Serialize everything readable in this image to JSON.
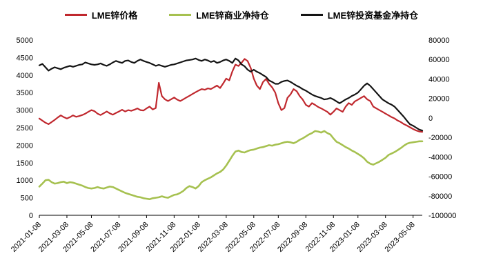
{
  "chart_data": {
    "type": "line",
    "title": "",
    "legend_position": "top",
    "grid": false,
    "x_tick_labels": [
      "2021-01-08",
      "2021-03-08",
      "2021-05-08",
      "2021-07-08",
      "2021-09-08",
      "2021-11-08",
      "2022-01-08",
      "2022-03-08",
      "2022-05-08",
      "2022-07-08",
      "2022-09-08",
      "2022-11-08",
      "2023-01-08",
      "2023-03-08",
      "2023-05-08"
    ],
    "x_tick_indices": [
      0,
      9,
      17,
      26,
      35,
      44,
      52,
      61,
      70,
      78,
      87,
      96,
      104,
      113,
      122
    ],
    "n_points": 126,
    "left_axis": {
      "min": 0,
      "max": 5000,
      "step": 500
    },
    "right_axis": {
      "min": -100000,
      "max": 80000,
      "step": 20000
    },
    "series": [
      {
        "name": "LME锌价格",
        "axis": "left",
        "color": "#c0282e",
        "values": [
          2760,
          2700,
          2640,
          2600,
          2660,
          2720,
          2790,
          2850,
          2800,
          2760,
          2800,
          2850,
          2810,
          2830,
          2860,
          2900,
          2950,
          3000,
          2970,
          2900,
          2860,
          2910,
          2960,
          2910,
          2870,
          2920,
          2960,
          3010,
          2960,
          3000,
          2980,
          3010,
          3050,
          3000,
          2990,
          3050,
          3100,
          3020,
          3060,
          3780,
          3400,
          3310,
          3260,
          3310,
          3360,
          3300,
          3260,
          3310,
          3360,
          3410,
          3460,
          3510,
          3560,
          3600,
          3580,
          3620,
          3600,
          3650,
          3700,
          3630,
          3760,
          3900,
          3850,
          4100,
          4300,
          4260,
          4350,
          4460,
          4400,
          4200,
          3900,
          3700,
          3600,
          3800,
          3890,
          3750,
          3650,
          3500,
          3200,
          3000,
          3060,
          3350,
          3450,
          3600,
          3540,
          3400,
          3300,
          3150,
          3100,
          3200,
          3150,
          3090,
          3050,
          3000,
          2950,
          2870,
          2950,
          3050,
          3000,
          2950,
          3100,
          3200,
          3150,
          3250,
          3300,
          3350,
          3400,
          3310,
          3260,
          3100,
          3050,
          3000,
          2950,
          2900,
          2850,
          2800,
          2760,
          2700,
          2660,
          2600,
          2560,
          2510,
          2460,
          2420,
          2390,
          2380
        ]
      },
      {
        "name": "LME锌商业净持仓",
        "axis": "right",
        "color": "#a6c150",
        "values": [
          -70500,
          -67500,
          -64000,
          -63500,
          -66000,
          -67500,
          -67000,
          -66000,
          -65500,
          -67000,
          -66000,
          -66500,
          -67500,
          -68500,
          -69500,
          -71000,
          -72000,
          -72500,
          -72000,
          -71000,
          -72000,
          -72500,
          -71500,
          -70500,
          -71000,
          -72500,
          -74000,
          -75500,
          -77000,
          -78000,
          -79000,
          -80000,
          -81000,
          -81500,
          -82500,
          -83000,
          -83500,
          -82500,
          -82000,
          -81500,
          -80500,
          -81500,
          -82000,
          -80500,
          -79000,
          -78500,
          -77000,
          -75000,
          -72000,
          -70000,
          -71000,
          -72500,
          -70000,
          -66000,
          -64000,
          -62500,
          -61000,
          -59000,
          -57000,
          -55500,
          -53000,
          -49000,
          -44000,
          -39000,
          -34500,
          -33500,
          -35000,
          -35500,
          -34000,
          -33000,
          -32500,
          -31500,
          -30500,
          -30000,
          -29000,
          -28000,
          -28500,
          -27500,
          -27000,
          -26000,
          -25000,
          -24500,
          -25000,
          -26000,
          -24500,
          -22500,
          -21000,
          -19000,
          -17000,
          -15500,
          -13500,
          -14000,
          -15000,
          -13500,
          -15500,
          -17000,
          -21000,
          -24500,
          -26000,
          -28000,
          -30000,
          -31500,
          -33500,
          -35000,
          -37000,
          -39000,
          -41500,
          -45000,
          -47000,
          -48000,
          -46500,
          -45000,
          -43000,
          -41000,
          -38000,
          -36500,
          -35000,
          -33000,
          -31000,
          -28500,
          -26500,
          -25500,
          -25000,
          -24500,
          -24000,
          -24000
        ]
      },
      {
        "name": "LME锌投资基金净持仓",
        "axis": "right",
        "color": "#141414",
        "values": [
          54000,
          55500,
          52000,
          48500,
          50500,
          52000,
          51000,
          50000,
          51500,
          52500,
          53500,
          52500,
          53500,
          54500,
          55000,
          57000,
          56000,
          55000,
          54500,
          55000,
          56000,
          54500,
          53500,
          55000,
          57000,
          58500,
          57500,
          56500,
          58500,
          59000,
          57500,
          56500,
          58500,
          60000,
          58500,
          57500,
          56500,
          55000,
          53500,
          54500,
          53500,
          52500,
          53500,
          54500,
          55000,
          56000,
          57000,
          58000,
          59000,
          59500,
          60000,
          61000,
          59500,
          58500,
          60000,
          59000,
          57500,
          58500,
          56500,
          57500,
          59000,
          60000,
          58500,
          56500,
          61000,
          59000,
          55000,
          53000,
          49500,
          47500,
          49500,
          47500,
          46000,
          44000,
          42000,
          38500,
          37000,
          35000,
          35000,
          37000,
          38000,
          38500,
          37000,
          35000,
          33000,
          31500,
          29500,
          28000,
          26000,
          24000,
          22500,
          21500,
          20500,
          19000,
          19500,
          20500,
          19000,
          17000,
          15000,
          17000,
          19000,
          20500,
          22500,
          24000,
          26000,
          29500,
          33000,
          35500,
          33000,
          29500,
          26000,
          22500,
          19000,
          17000,
          15000,
          13500,
          11500,
          8000,
          4500,
          1000,
          -3000,
          -6500,
          -8000,
          -10000,
          -12000,
          -13000
        ]
      }
    ]
  }
}
